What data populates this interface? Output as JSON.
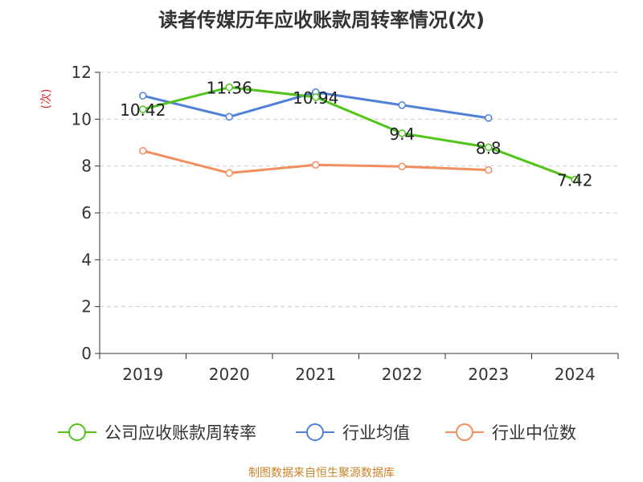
{
  "chart_data": {
    "type": "line",
    "title": "读者传媒历年应收账款周转率情况(次)",
    "ylabel": "(次)",
    "xlabel": "",
    "categories": [
      "2019",
      "2020",
      "2021",
      "2022",
      "2023",
      "2024"
    ],
    "ylim": [
      0,
      12
    ],
    "yticks": [
      0,
      2,
      4,
      6,
      8,
      10,
      12
    ],
    "grid": true,
    "legend_position": "bottom",
    "series": [
      {
        "name": "公司应收账款周转率",
        "color": "#52c41a",
        "values": [
          10.42,
          11.36,
          10.94,
          9.4,
          8.8,
          7.42
        ],
        "data_labels": [
          "10.42",
          "11.36",
          "10.94",
          "9.4",
          "8.8",
          "7.42"
        ]
      },
      {
        "name": "行业均值",
        "color": "#4f81d8",
        "values": [
          11.0,
          10.1,
          11.15,
          10.6,
          10.05,
          null
        ]
      },
      {
        "name": "行业中位数",
        "color": "#f28d5d",
        "values": [
          8.65,
          7.7,
          8.05,
          7.98,
          7.83,
          null
        ]
      }
    ],
    "source": "制图数据来自恒生聚源数据库",
    "colors": {
      "title": "#333333",
      "axis": "#333333",
      "grid": "#cccccc",
      "ylabel": "#d9272b",
      "source": "#c8842a"
    }
  }
}
